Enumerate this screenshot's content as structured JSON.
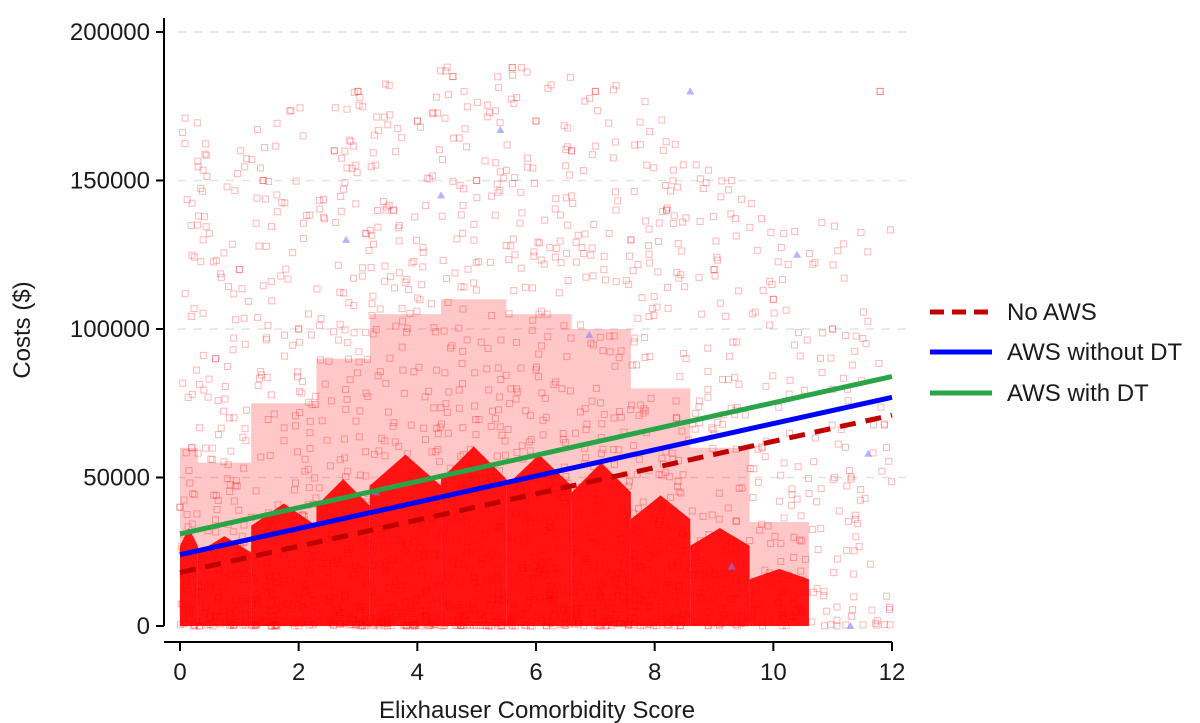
{
  "chart_data": {
    "type": "scatter",
    "title": "",
    "xlabel": "Elixhauser Comorbidity Score",
    "ylabel": "Costs ($)",
    "xlim": [
      0,
      12
    ],
    "ylim": [
      0,
      200000
    ],
    "x_ticks": [
      0,
      2,
      4,
      6,
      8,
      10,
      12
    ],
    "x_tick_labels": [
      "0",
      "2",
      "4",
      "6",
      "8",
      "10",
      "12"
    ],
    "y_ticks": [
      0,
      50000,
      100000,
      150000,
      200000
    ],
    "y_tick_labels": [
      "0",
      "50000",
      "100000",
      "150000",
      "200000"
    ],
    "grid": "horizontal dashed",
    "legend_position": "right",
    "scatter_series": [
      {
        "marker": "hollow-square",
        "color": "#ff0000",
        "description_points": [
          [
            0,
            40000
          ],
          [
            0.2,
            60000
          ],
          [
            0.6,
            90000
          ],
          [
            1,
            120000
          ],
          [
            1.4,
            150000
          ],
          [
            2,
            100000
          ],
          [
            2.6,
            160000
          ],
          [
            3,
            180000
          ],
          [
            3.6,
            140000
          ],
          [
            4,
            170000
          ],
          [
            4.6,
            185000
          ],
          [
            5,
            150000
          ],
          [
            5.6,
            188000
          ],
          [
            6,
            170000
          ],
          [
            6.6,
            160000
          ],
          [
            7,
            180000
          ],
          [
            7.6,
            130000
          ],
          [
            8.2,
            140000
          ],
          [
            9,
            120000
          ],
          [
            10,
            110000
          ],
          [
            11,
            100000
          ],
          [
            11.8,
            180000
          ]
        ]
      },
      {
        "marker": "triangle",
        "color": "#8080ff",
        "description_points": [
          [
            2.8,
            130000
          ],
          [
            3.3,
            45000
          ],
          [
            4.4,
            145000
          ],
          [
            5.4,
            167000
          ],
          [
            6.9,
            98000
          ],
          [
            8.6,
            180000
          ],
          [
            9.3,
            20000
          ],
          [
            10.4,
            125000
          ],
          [
            11.3,
            0
          ],
          [
            11.6,
            58000
          ]
        ]
      }
    ],
    "series": [
      {
        "name": "No AWS",
        "style": "dashed",
        "color": "#c00000",
        "x": [
          0,
          12
        ],
        "y": [
          18000,
          71000
        ]
      },
      {
        "name": "AWS without DT",
        "style": "solid",
        "color": "#0000ff",
        "x": [
          0,
          12
        ],
        "y": [
          24000,
          77000
        ]
      },
      {
        "name": "AWS with DT",
        "style": "solid",
        "color": "#2aa448",
        "x": [
          0,
          12
        ],
        "y": [
          31000,
          84000
        ]
      }
    ]
  }
}
